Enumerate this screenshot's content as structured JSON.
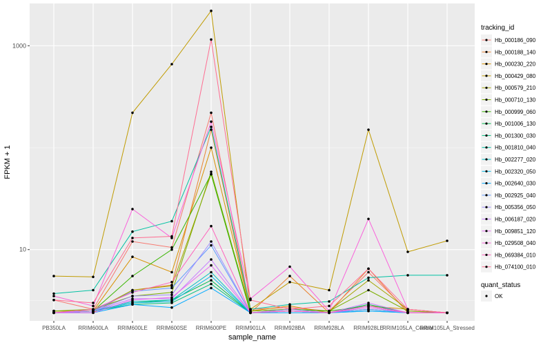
{
  "chart_data": {
    "type": "line",
    "xlabel": "sample_name",
    "ylabel": "FPKM + 1",
    "y_scale": "log10",
    "ylim": [
      2.0,
      2600
    ],
    "y_ticks": [
      {
        "value": 10,
        "label": "10"
      },
      {
        "value": 1000,
        "label": "1000"
      }
    ],
    "grid": true,
    "legend_position": "right",
    "categories": [
      "PB350LA",
      "RRIM600LA",
      "RRIM600LE",
      "RRIM600SE",
      "RRIM600PE",
      "RRIM901LA",
      "RRIM928BA",
      "RRIM928LA",
      "RRIM928LE",
      "RRIM105LA_Control",
      "RRIM105LA_Stressed"
    ],
    "legend_title": "tracking_id",
    "legend2_title": "quant_status",
    "legend2_items": [
      {
        "label": "OK"
      }
    ],
    "series": [
      {
        "name": "Hb_000186_090",
        "color": "#F8766D",
        "values": [
          3.2,
          2.6,
          12.0,
          10.5,
          220,
          2.6,
          2.7,
          2.5,
          6.0,
          2.5,
          2.4
        ]
      },
      {
        "name": "Hb_000188_140",
        "color": "#EA8331",
        "values": [
          2.4,
          2.4,
          4.0,
          4.5,
          150,
          2.4,
          5.5,
          2.4,
          6.5,
          2.4,
          2.4
        ]
      },
      {
        "name": "Hb_000230_220",
        "color": "#D89000",
        "values": [
          2.5,
          2.5,
          8.5,
          6.0,
          100,
          2.5,
          2.8,
          2.4,
          2.8,
          2.6,
          2.4
        ]
      },
      {
        "name": "Hb_000429_080",
        "color": "#C09B00",
        "values": [
          5.5,
          5.4,
          220,
          660,
          2200,
          2.6,
          4.8,
          4.0,
          150,
          9.5,
          12.2
        ]
      },
      {
        "name": "Hb_000579_210",
        "color": "#A3A500",
        "values": [
          2.5,
          2.5,
          4.0,
          4.4,
          55,
          2.5,
          2.6,
          2.5,
          5.0,
          2.6,
          2.4
        ]
      },
      {
        "name": "Hb_000710_130",
        "color": "#7CAE00",
        "values": [
          2.5,
          2.6,
          3.5,
          3.8,
          58,
          2.5,
          2.6,
          2.5,
          4.0,
          2.5,
          2.4
        ]
      },
      {
        "name": "Hb_000999_060",
        "color": "#39B600",
        "values": [
          2.4,
          2.5,
          5.5,
          10.0,
          55,
          2.4,
          2.6,
          2.5,
          2.8,
          2.4,
          2.4
        ]
      },
      {
        "name": "Hb_001006_130",
        "color": "#00BB4E",
        "values": [
          2.4,
          2.5,
          3.0,
          3.2,
          5.0,
          2.4,
          2.5,
          2.4,
          2.9,
          2.4,
          2.4
        ]
      },
      {
        "name": "Hb_001300_030",
        "color": "#00BF7D",
        "values": [
          2.4,
          2.5,
          2.9,
          3.0,
          4.6,
          2.4,
          2.5,
          2.4,
          2.6,
          2.4,
          2.4
        ]
      },
      {
        "name": "Hb_001810_040",
        "color": "#00C1A3",
        "values": [
          3.7,
          4.0,
          15.0,
          19.0,
          160,
          2.6,
          2.9,
          3.1,
          5.3,
          5.6,
          5.6
        ]
      },
      {
        "name": "Hb_002277_020",
        "color": "#00BFC4",
        "values": [
          2.4,
          2.5,
          3.1,
          3.2,
          6.0,
          2.4,
          2.5,
          2.4,
          2.8,
          2.4,
          2.4
        ]
      },
      {
        "name": "Hb_002320_050",
        "color": "#00B8E7",
        "values": [
          2.4,
          2.5,
          3.0,
          3.1,
          5.5,
          2.4,
          2.5,
          2.4,
          2.5,
          2.4,
          2.4
        ]
      },
      {
        "name": "Hb_002640_030",
        "color": "#00A9FF",
        "values": [
          2.4,
          2.4,
          2.9,
          2.7,
          4.2,
          2.4,
          2.4,
          2.4,
          2.5,
          2.4,
          2.4
        ]
      },
      {
        "name": "Hb_002925_040",
        "color": "#619CFF",
        "values": [
          2.4,
          2.5,
          3.9,
          4.2,
          11.0,
          2.4,
          2.5,
          2.4,
          2.6,
          2.4,
          2.4
        ]
      },
      {
        "name": "Hb_005356_050",
        "color": "#9F8CFF",
        "values": [
          2.4,
          2.5,
          3.5,
          3.6,
          12.0,
          2.4,
          2.6,
          2.4,
          2.8,
          2.4,
          2.4
        ]
      },
      {
        "name": "Hb_006187_020",
        "color": "#C77CFF",
        "values": [
          2.4,
          2.5,
          3.3,
          3.3,
          8.0,
          2.4,
          2.5,
          2.4,
          3.0,
          2.4,
          2.4
        ]
      },
      {
        "name": "Hb_009851_120",
        "color": "#E76BF3",
        "values": [
          2.4,
          2.4,
          3.2,
          3.4,
          7.0,
          2.4,
          2.5,
          2.4,
          2.7,
          2.4,
          2.4
        ]
      },
      {
        "name": "Hb_029508_040",
        "color": "#FA62DB",
        "values": [
          3.5,
          2.8,
          25.0,
          13.0,
          180,
          3.3,
          6.8,
          2.5,
          20.0,
          2.6,
          2.4
        ]
      },
      {
        "name": "Hb_069384_010",
        "color": "#FF62BC",
        "values": [
          2.4,
          2.6,
          3.8,
          4.8,
          17.0,
          2.4,
          2.5,
          2.4,
          2.8,
          2.4,
          2.4
        ]
      },
      {
        "name": "Hb_074100_010",
        "color": "#FF6C91",
        "values": [
          3.2,
          3.0,
          13.0,
          13.5,
          1150,
          3.2,
          2.6,
          2.8,
          6.5,
          2.6,
          2.4
        ]
      }
    ]
  }
}
